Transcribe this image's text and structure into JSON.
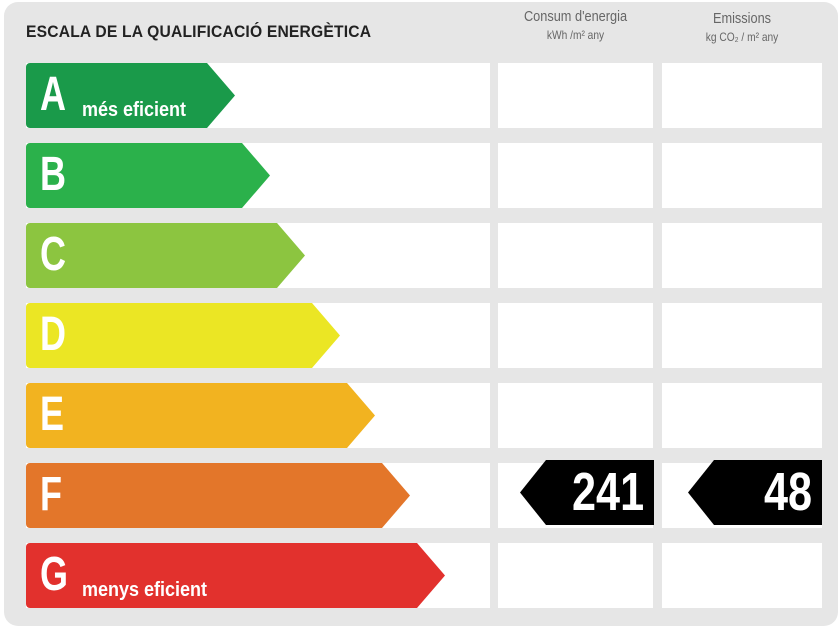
{
  "title": "ESCALA DE LA QUALIFICACIÓ ENERGÈTICA",
  "columns": [
    {
      "label": "Consum d'energia",
      "unit": "kWh /m² any"
    },
    {
      "label": "Emissions",
      "unit": "kg CO₂ / m² any"
    }
  ],
  "ratings": [
    {
      "letter": "A",
      "label": "més eficient",
      "color": "#1a9a4a"
    },
    {
      "letter": "B",
      "label": "",
      "color": "#2bb14b"
    },
    {
      "letter": "C",
      "label": "",
      "color": "#8cc540"
    },
    {
      "letter": "D",
      "label": "",
      "color": "#ebe624"
    },
    {
      "letter": "E",
      "label": "",
      "color": "#f2b320"
    },
    {
      "letter": "F",
      "label": "",
      "color": "#e3762a"
    },
    {
      "letter": "G",
      "label": "menys eficient",
      "color": "#e2312d"
    }
  ],
  "current_rating": "F",
  "energy_consumption": "241",
  "emissions": "48"
}
